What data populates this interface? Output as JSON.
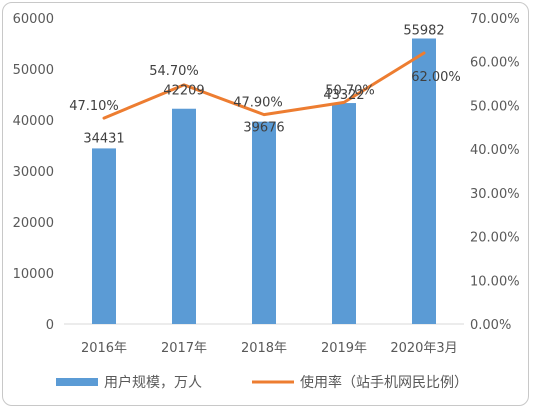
{
  "chart_data": {
    "type": "bar+line",
    "categories": [
      "2016年",
      "2017年",
      "2018年",
      "2019年",
      "2020年3月"
    ],
    "series": [
      {
        "name": "用户规模，万人",
        "type": "bar",
        "axis": "left",
        "color": "#5b9bd5",
        "values": [
          34431,
          42209,
          39676,
          43322,
          55982
        ],
        "labels": [
          "34431",
          "42209",
          "39676",
          "43322",
          "55982"
        ]
      },
      {
        "name": "使用率（站手机网民比例）",
        "type": "line",
        "axis": "right",
        "color": "#ed7d31",
        "values": [
          47.1,
          54.7,
          47.9,
          50.7,
          62.0
        ],
        "labels": [
          "47.10%",
          "54.70%",
          "47.90%",
          "50.70%",
          "62.00%"
        ]
      }
    ],
    "y_left": {
      "min": 0,
      "max": 60000,
      "ticks": [
        "0",
        "10000",
        "20000",
        "30000",
        "40000",
        "50000",
        "60000"
      ]
    },
    "y_right": {
      "min": 0,
      "max": 70,
      "ticks": [
        "0.00%",
        "10.00%",
        "20.00%",
        "30.00%",
        "40.00%",
        "50.00%",
        "60.00%",
        "70.00%"
      ]
    },
    "grid": false,
    "legend": "bottom"
  }
}
